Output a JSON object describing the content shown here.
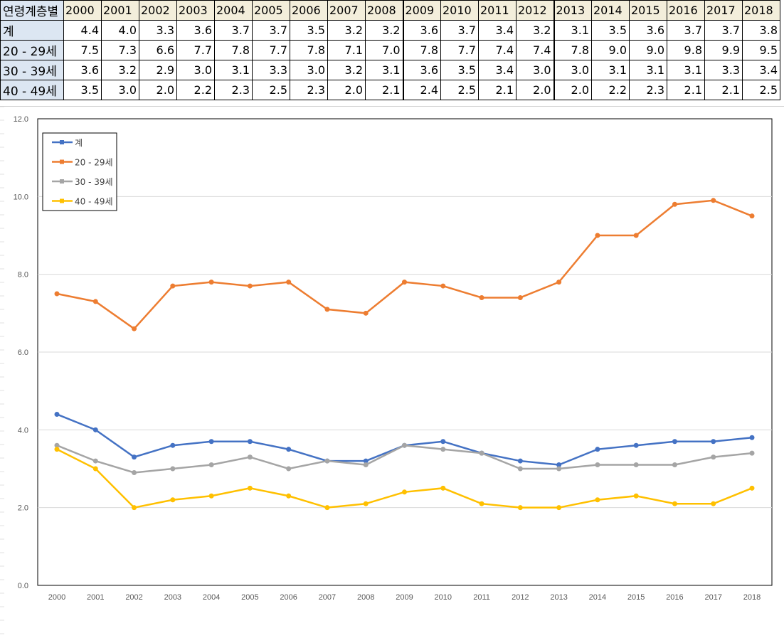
{
  "table": {
    "corner": "연령계층별",
    "years": [
      "2000",
      "2001",
      "2002",
      "2003",
      "2004",
      "2005",
      "2006",
      "2007",
      "2008",
      "2009",
      "2010",
      "2011",
      "2012",
      "2013",
      "2014",
      "2015",
      "2016",
      "2017",
      "2018"
    ],
    "rows": [
      {
        "label": "계",
        "values": [
          "4.4",
          "4.0",
          "3.3",
          "3.6",
          "3.7",
          "3.7",
          "3.5",
          "3.2",
          "3.2",
          "3.6",
          "3.7",
          "3.4",
          "3.2",
          "3.1",
          "3.5",
          "3.6",
          "3.7",
          "3.7",
          "3.8"
        ]
      },
      {
        "label": "20 - 29세",
        "values": [
          "7.5",
          "7.3",
          "6.6",
          "7.7",
          "7.8",
          "7.7",
          "7.8",
          "7.1",
          "7.0",
          "7.8",
          "7.7",
          "7.4",
          "7.4",
          "7.8",
          "9.0",
          "9.0",
          "9.8",
          "9.9",
          "9.5"
        ]
      },
      {
        "label": "30 - 39세",
        "values": [
          "3.6",
          "3.2",
          "2.9",
          "3.0",
          "3.1",
          "3.3",
          "3.0",
          "3.2",
          "3.1",
          "3.6",
          "3.5",
          "3.4",
          "3.0",
          "3.0",
          "3.1",
          "3.1",
          "3.1",
          "3.3",
          "3.4"
        ]
      },
      {
        "label": "40 - 49세",
        "values": [
          "3.5",
          "3.0",
          "2.0",
          "2.2",
          "2.3",
          "2.5",
          "2.3",
          "2.0",
          "2.1",
          "2.4",
          "2.5",
          "2.1",
          "2.0",
          "2.0",
          "2.2",
          "2.3",
          "2.1",
          "2.1",
          "2.5"
        ]
      }
    ]
  },
  "chart_data": {
    "type": "line",
    "categories": [
      "2000",
      "2001",
      "2002",
      "2003",
      "2004",
      "2005",
      "2006",
      "2007",
      "2008",
      "2009",
      "2010",
      "2011",
      "2012",
      "2013",
      "2014",
      "2015",
      "2016",
      "2017",
      "2018"
    ],
    "ylim": [
      0,
      12
    ],
    "yticks": [
      "0.0",
      "2.0",
      "4.0",
      "6.0",
      "8.0",
      "10.0",
      "12.0"
    ],
    "grid": true,
    "legend": "top-left",
    "series": [
      {
        "name": "계",
        "color": "#4472c4",
        "values": [
          4.4,
          4.0,
          3.3,
          3.6,
          3.7,
          3.7,
          3.5,
          3.2,
          3.2,
          3.6,
          3.7,
          3.4,
          3.2,
          3.1,
          3.5,
          3.6,
          3.7,
          3.7,
          3.8
        ]
      },
      {
        "name": "20 - 29세",
        "color": "#ed7d31",
        "values": [
          7.5,
          7.3,
          6.6,
          7.7,
          7.8,
          7.7,
          7.8,
          7.1,
          7.0,
          7.8,
          7.7,
          7.4,
          7.4,
          7.8,
          9.0,
          9.0,
          9.8,
          9.9,
          9.5
        ]
      },
      {
        "name": "30 - 39세",
        "color": "#a5a5a5",
        "values": [
          3.6,
          3.2,
          2.9,
          3.0,
          3.1,
          3.3,
          3.0,
          3.2,
          3.1,
          3.6,
          3.5,
          3.4,
          3.0,
          3.0,
          3.1,
          3.1,
          3.1,
          3.3,
          3.4
        ]
      },
      {
        "name": "40 - 49세",
        "color": "#ffc000",
        "values": [
          3.5,
          3.0,
          2.0,
          2.2,
          2.3,
          2.5,
          2.3,
          2.0,
          2.1,
          2.4,
          2.5,
          2.1,
          2.0,
          2.0,
          2.2,
          2.3,
          2.1,
          2.1,
          2.5
        ]
      }
    ]
  }
}
